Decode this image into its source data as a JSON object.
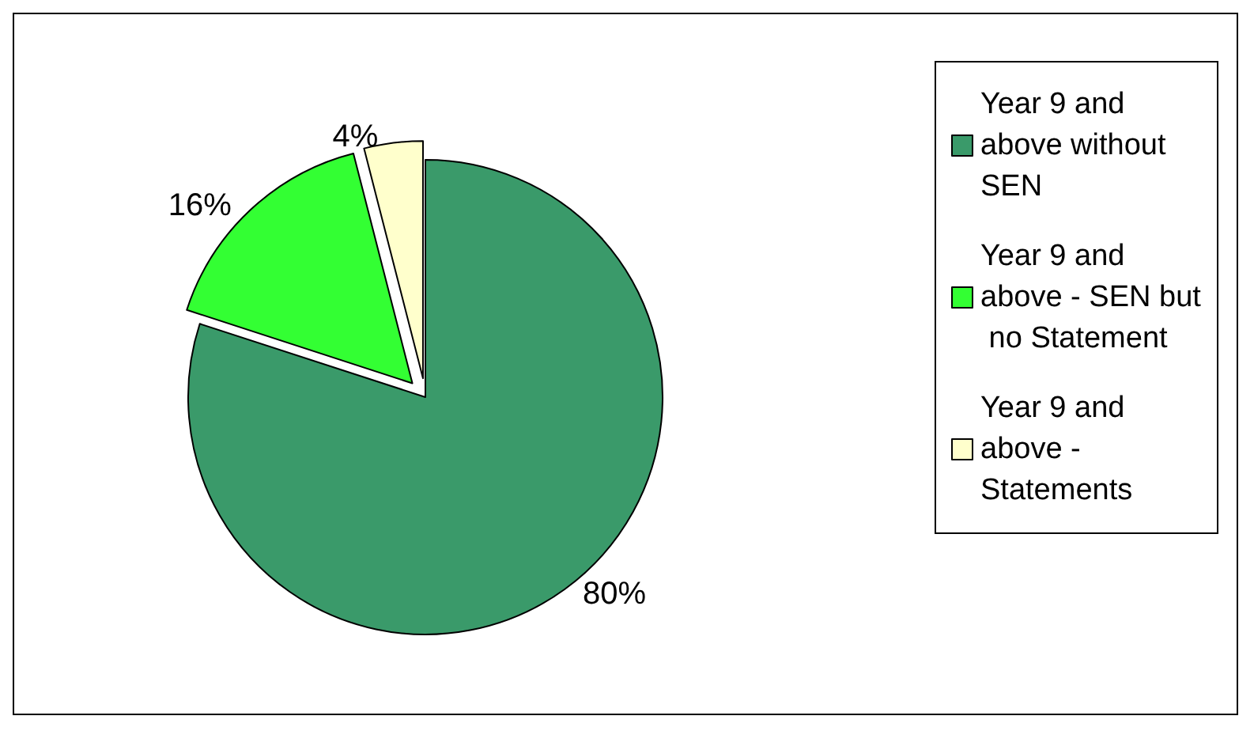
{
  "chart_data": {
    "type": "pie",
    "categories": [
      "Year 9 and above without SEN",
      "Year 9 and above - SEN but no Statement",
      "Year 9 and above - Statements"
    ],
    "values": [
      80,
      16,
      4
    ],
    "colors": [
      "#3a9a6a",
      "#33ff33",
      "#ffffcc"
    ],
    "value_labels": [
      "80%",
      "16%",
      "4%"
    ],
    "legend": "right"
  }
}
